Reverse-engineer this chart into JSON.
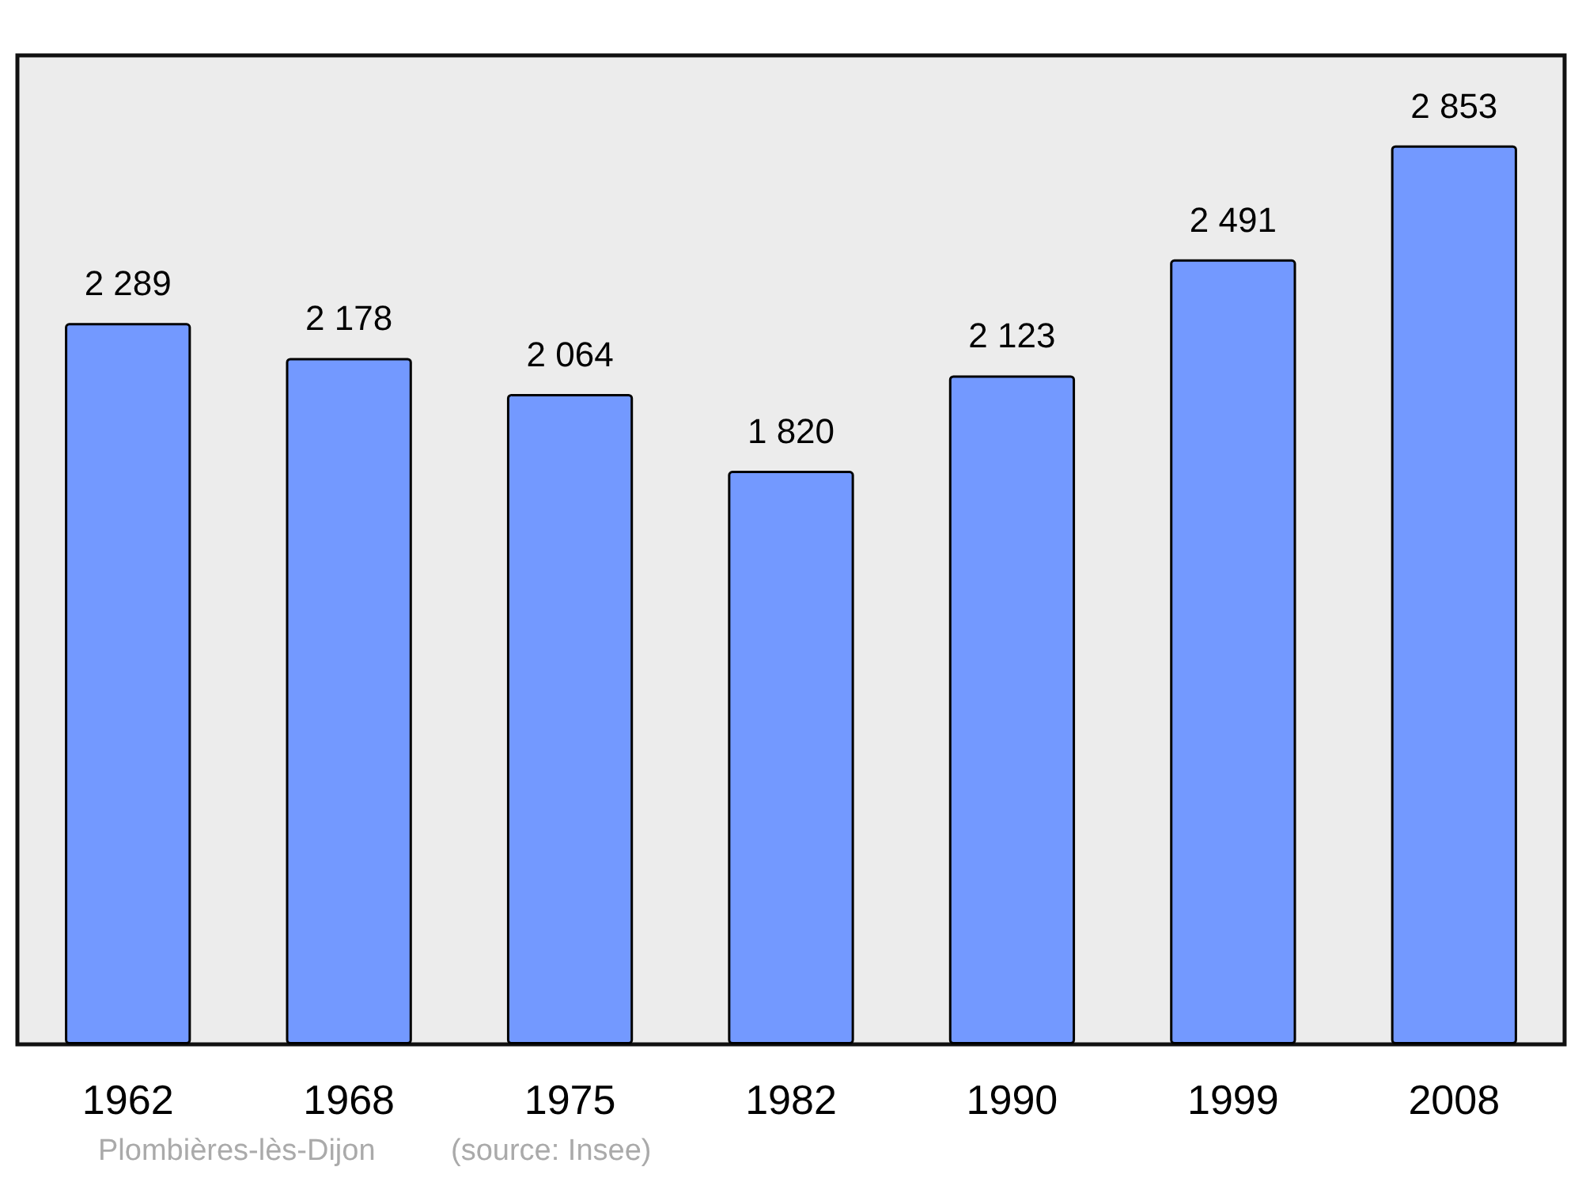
{
  "chart_data": {
    "type": "bar",
    "categories": [
      "1962",
      "1968",
      "1975",
      "1982",
      "1990",
      "1999",
      "2008"
    ],
    "values": [
      2289,
      2178,
      2064,
      1820,
      2123,
      2491,
      2853
    ],
    "value_labels": [
      "2 289",
      "2 178",
      "2 064",
      "1 820",
      "2 123",
      "2 491",
      "2 853"
    ],
    "color": "#7399ff",
    "annotations": [
      "Plombières-lès-Dijon",
      "(source: Insee)"
    ]
  }
}
